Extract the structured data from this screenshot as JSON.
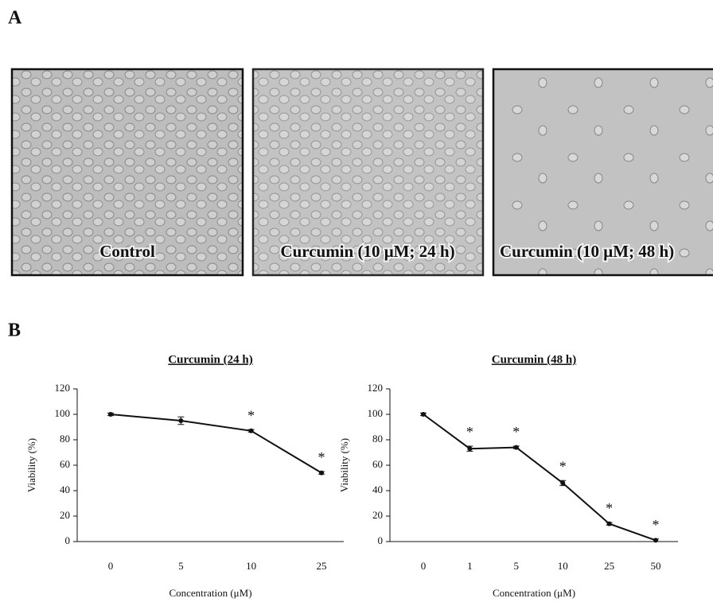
{
  "panel_labels": [
    "A",
    "B"
  ],
  "images": [
    {
      "caption": "Control"
    },
    {
      "caption": "Curcumin (10 μM; 24 h)"
    },
    {
      "caption": "Curcumin (10 μM; 48 h)"
    }
  ],
  "chart_data": [
    {
      "type": "line",
      "title": "Curcumin (24 h)",
      "x_label": "Concentration (μM)",
      "y_label": "Viability (%)",
      "categories": [
        "0",
        "5",
        "10",
        "25"
      ],
      "values": [
        100,
        95,
        87,
        54
      ],
      "errors": [
        1,
        3,
        1,
        1
      ],
      "significance": [
        null,
        null,
        "*",
        "*"
      ],
      "color": "#111111",
      "ylim": [
        0,
        120
      ],
      "yticks": [
        0,
        20,
        40,
        60,
        80,
        100,
        120
      ]
    },
    {
      "type": "line",
      "title": "Curcumin (48 h)",
      "x_label": "Concentration (μM)",
      "y_label": "Viability (%)",
      "categories": [
        "0",
        "1",
        "5",
        "10",
        "25",
        "50"
      ],
      "values": [
        100,
        73,
        74,
        46,
        14,
        1
      ],
      "errors": [
        1,
        2,
        1,
        2,
        1,
        1
      ],
      "significance": [
        null,
        "*",
        "*",
        "*",
        "*",
        "*"
      ],
      "color": "#111111",
      "ylim": [
        0,
        120
      ],
      "yticks": [
        0,
        20,
        40,
        60,
        80,
        100,
        120
      ]
    }
  ]
}
